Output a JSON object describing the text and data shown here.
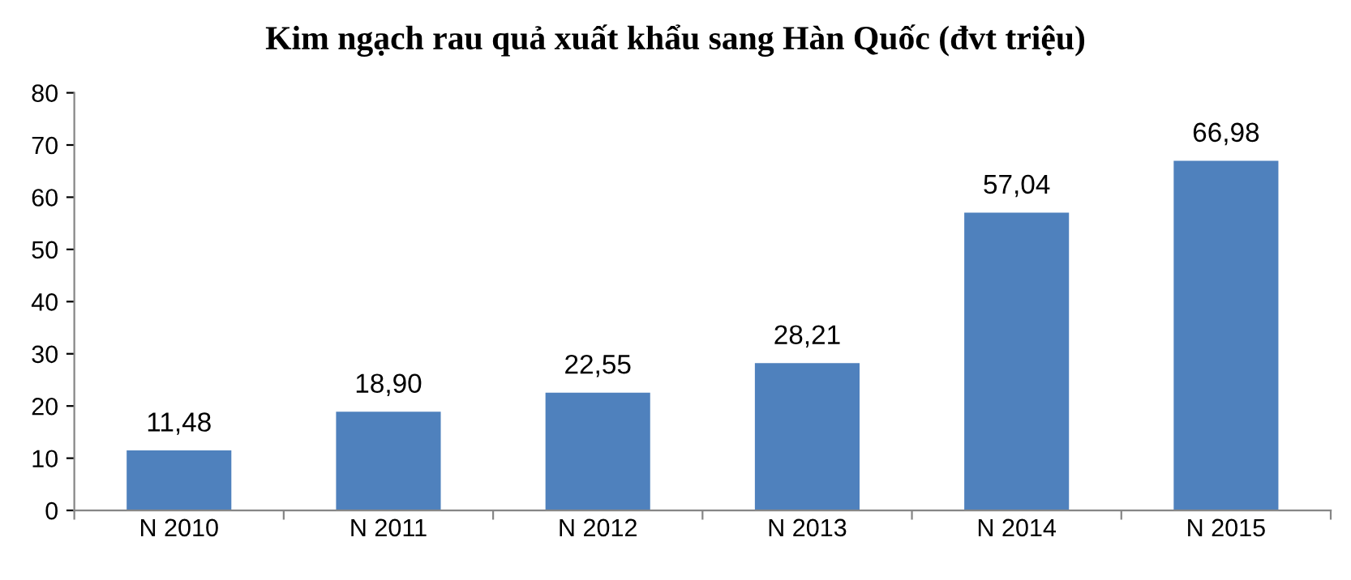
{
  "chart_data": {
    "type": "bar",
    "title": "Kim ngạch rau quả xuất khẩu sang Hàn Quốc (đvt triệu)",
    "categories": [
      "N 2010",
      "N 2011",
      "N 2012",
      "N 2013",
      "N 2014",
      "N 2015"
    ],
    "values": [
      11.48,
      18.9,
      22.55,
      28.21,
      57.04,
      66.98
    ],
    "value_labels": [
      "11,48",
      "18,90",
      "22,55",
      "28,21",
      "57,04",
      "66,98"
    ],
    "color": "#4f81bd",
    "ylim": [
      0,
      80
    ],
    "yticks": [
      0,
      10,
      20,
      30,
      40,
      50,
      60,
      70,
      80
    ],
    "grid": false
  }
}
